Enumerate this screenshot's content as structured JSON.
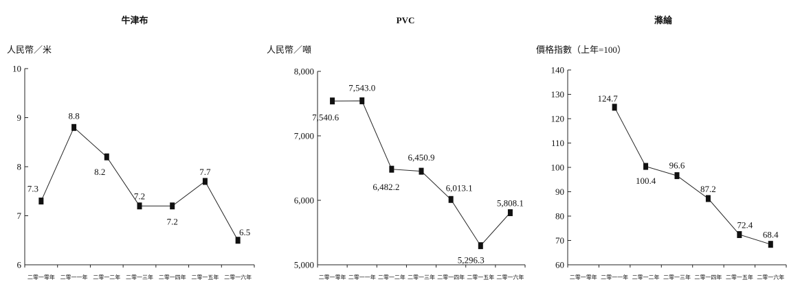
{
  "chart_data": [
    {
      "type": "line",
      "title": "牛津布",
      "ylabel": "人民幣／米",
      "categories": [
        "二零一零年",
        "二零一一年",
        "二零一二年",
        "二零一三年",
        "二零一四年",
        "二零一五年",
        "二零一六年"
      ],
      "values": [
        7.3,
        8.8,
        8.2,
        7.2,
        7.2,
        7.7,
        6.5
      ],
      "data_labels": [
        "7.3",
        "8.8",
        "8.2",
        "7.2",
        "7.2",
        "7.7",
        "6.5"
      ],
      "ylim": [
        6,
        10
      ],
      "yticks": [
        6,
        7,
        8,
        9,
        10
      ],
      "ytick_labels": [
        "6",
        "7",
        "8",
        "9",
        "10"
      ],
      "grid": false
    },
    {
      "type": "line",
      "title": "PVC",
      "ylabel": "人民幣／噸",
      "categories": [
        "二零一零年",
        "二零一一年",
        "二零一二年",
        "二零一三年",
        "二零一四年",
        "二零一五年",
        "二零一六年"
      ],
      "values": [
        7540.6,
        7543.0,
        6482.2,
        6450.9,
        6013.1,
        5296.3,
        5808.1
      ],
      "data_labels": [
        "7,540.6",
        "7,543.0",
        "6,482.2",
        "6,450.9",
        "6,013.1",
        "5,296.3",
        "5,808.1"
      ],
      "ylim": [
        5000,
        8000
      ],
      "yticks": [
        5000,
        6000,
        7000,
        8000
      ],
      "ytick_labels": [
        "5,000",
        "6,000",
        "7,000",
        "8,000"
      ],
      "grid": false
    },
    {
      "type": "line",
      "title": "滌綸",
      "ylabel": "價格指數（上年=100）",
      "categories": [
        "二零一零年",
        "二零一一年",
        "二零一二年",
        "二零一三年",
        "二零一四年",
        "二零一五年",
        "二零一六年"
      ],
      "values": [
        null,
        124.7,
        100.4,
        96.6,
        87.2,
        72.4,
        68.4
      ],
      "data_labels": [
        "",
        "124.7",
        "100.4",
        "96.6",
        "87.2",
        "72.4",
        "68.4"
      ],
      "ylim": [
        60,
        140
      ],
      "yticks": [
        60,
        70,
        80,
        90,
        100,
        110,
        120,
        130,
        140
      ],
      "ytick_labels": [
        "60",
        "70",
        "80",
        "90",
        "100",
        "110",
        "120",
        "130",
        "140"
      ],
      "grid": false
    }
  ]
}
